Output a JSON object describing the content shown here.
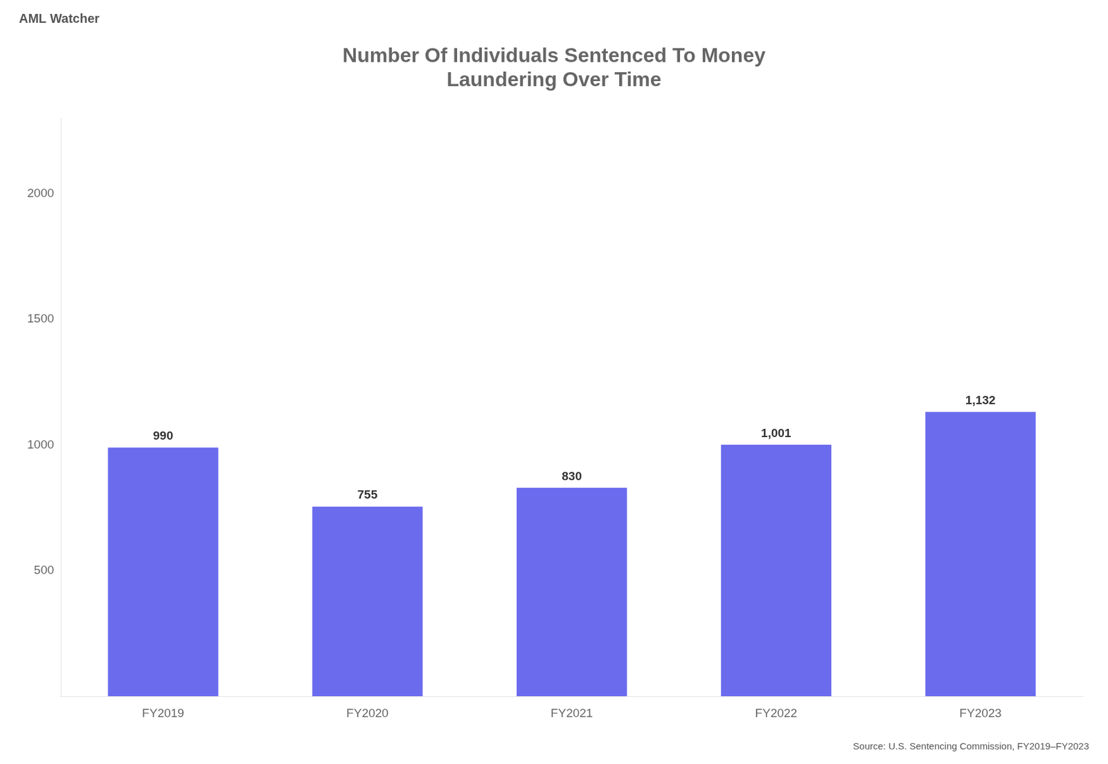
{
  "chart_data": {
    "type": "bar",
    "title": [
      "Number Of Individuals Sentenced To Money",
      "Laundering Over Time"
    ],
    "categories": [
      "FY2019",
      "FY2020",
      "FY2021",
      "FY2022",
      "FY2023"
    ],
    "values": [
      990,
      755,
      830,
      1001,
      1132
    ],
    "value_labels": [
      "990",
      "755",
      "830",
      "1,001",
      "1,132"
    ],
    "data_labels": true,
    "color": "#6B6BEE",
    "ylim": [
      0,
      2300
    ],
    "yticks": [
      500,
      1000,
      1500,
      2000
    ],
    "grid": false,
    "annotations": [
      "Source: U.S. Sentencing Commission, FY2019–FY2023",
      "AML Watcher"
    ]
  }
}
